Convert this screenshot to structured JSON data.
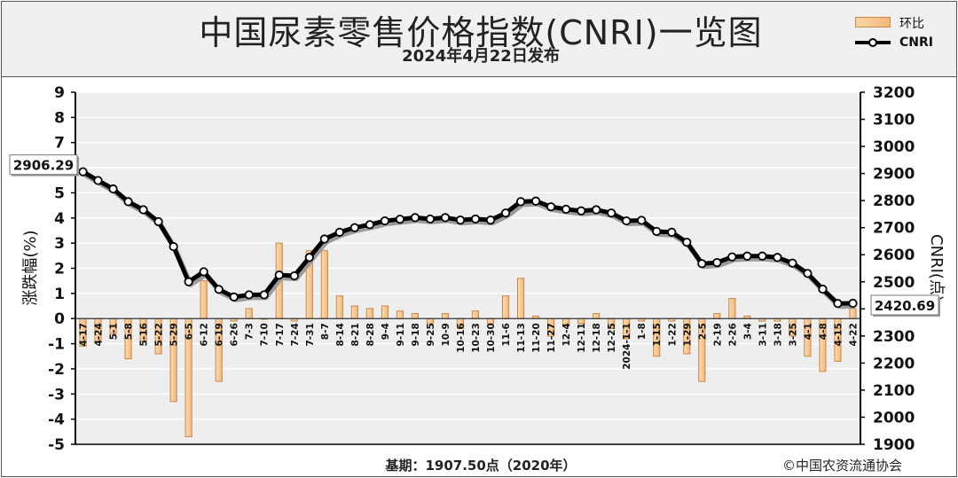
{
  "header": {
    "title": "中国尿素零售价格指数(CNRI)一览图",
    "subtitle": "2024年4月22日发布"
  },
  "legend": {
    "bar_label": "环比",
    "line_label": "CNRI"
  },
  "footer": {
    "base_note": "基期：1907.50点（2020年）",
    "copyright": "©中国农资流通协会"
  },
  "colors": {
    "bar_fill": "#f4b97a",
    "bar_edge": "#c9874a",
    "line": "#000000",
    "marker_fill": "#ffffff",
    "plot_bg": "#eeeeee",
    "grid": "#ffffff"
  },
  "chart_data": {
    "type": "bar+line",
    "title": "中国尿素零售价格指数(CNRI)一览图",
    "left_axis": {
      "label": "涨跌幅(%)",
      "range": [
        -5,
        9
      ],
      "ticks": [
        "-5",
        "-4",
        "-3",
        "-2",
        "-1",
        "0",
        "1",
        "2",
        "3",
        "4",
        "5",
        "6",
        "7",
        "8",
        "9"
      ]
    },
    "right_axis": {
      "label": "CNRI(点)",
      "range": [
        1900,
        3200
      ],
      "ticks": [
        "1900",
        "2000",
        "2100",
        "2200",
        "2300",
        "2400",
        "2500",
        "2600",
        "2700",
        "2800",
        "2900",
        "3000",
        "3100",
        "3200"
      ]
    },
    "grid": true,
    "legend_position": "top-right",
    "categories": [
      "4-17",
      "4-24",
      "5-1",
      "5-8",
      "5-16",
      "5-22",
      "5-29",
      "6-5",
      "6-12",
      "6-19",
      "6-26",
      "7-3",
      "7-10",
      "7-17",
      "7-24",
      "7-31",
      "8-7",
      "8-14",
      "8-21",
      "8-28",
      "9-4",
      "9-11",
      "9-18",
      "9-25",
      "10-9",
      "10-16",
      "10-23",
      "10-30",
      "11-6",
      "11-13",
      "11-20",
      "11-27",
      "12-4",
      "12-11",
      "12-18",
      "12-25",
      "2024-1-1",
      "1-8",
      "1-15",
      "1-22",
      "1-29",
      "2-5",
      "2-19",
      "2-26",
      "3-4",
      "3-11",
      "3-18",
      "3-25",
      "4-1",
      "4-8",
      "4-15",
      "4-22"
    ],
    "series": [
      {
        "name": "环比",
        "kind": "bar",
        "axis": "left",
        "values": [
          -1.1,
          -0.9,
          -0.6,
          -1.6,
          -0.9,
          -1.4,
          -3.3,
          -4.7,
          1.5,
          -2.5,
          -0.1,
          0.4,
          0.0,
          3.0,
          -0.1,
          2.7,
          2.7,
          0.9,
          0.5,
          0.4,
          0.5,
          0.3,
          0.2,
          -0.2,
          0.2,
          -0.4,
          0.3,
          -0.2,
          0.9,
          1.6,
          0.1,
          -0.7,
          -0.3,
          -0.2,
          0.2,
          -0.4,
          -0.8,
          -0.1,
          -1.5,
          -0.1,
          -1.4,
          -2.5,
          0.2,
          0.8,
          0.1,
          -0.1,
          -0.1,
          -0.7,
          -1.5,
          -2.1,
          -1.7,
          0.4
        ]
      },
      {
        "name": "CNRI",
        "kind": "line",
        "axis": "right",
        "values": [
          2906.29,
          2874,
          2843,
          2796,
          2766,
          2722,
          2630,
          2500,
          2537,
          2472,
          2444,
          2452,
          2452,
          2525,
          2522,
          2590,
          2658,
          2683,
          2700,
          2711,
          2725,
          2731,
          2737,
          2732,
          2737,
          2728,
          2732,
          2728,
          2754,
          2796,
          2798,
          2777,
          2768,
          2762,
          2766,
          2754,
          2725,
          2727,
          2686,
          2683,
          2646,
          2567,
          2571,
          2592,
          2595,
          2595,
          2590,
          2569,
          2531,
          2473,
          2420,
          2420.69
        ]
      }
    ],
    "annotations": [
      {
        "text": "2906.29",
        "at": "4-17"
      },
      {
        "text": "2420.69",
        "at": "4-22"
      }
    ]
  }
}
